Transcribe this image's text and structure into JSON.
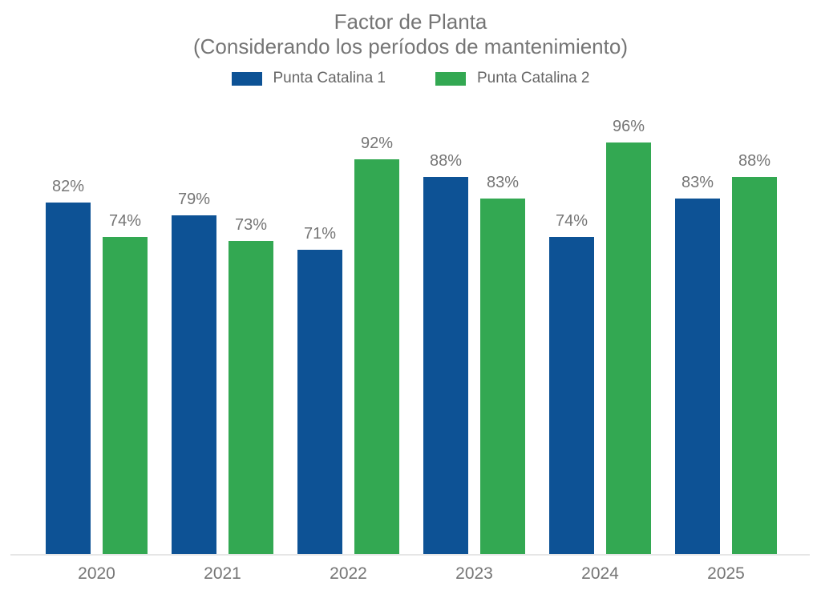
{
  "title": {
    "line1": "Factor de Planta",
    "line2": "(Considerando los períodos de mantenimiento)"
  },
  "colors": {
    "series1": "#0d5295",
    "series2": "#33a852",
    "axis_text": "#757575",
    "baseline": "#e6e6e6"
  },
  "chart_data": {
    "type": "bar",
    "title": "Factor de Planta",
    "subtitle": "(Considerando los períodos de mantenimiento)",
    "categories": [
      "2020",
      "2021",
      "2022",
      "2023",
      "2024",
      "2025"
    ],
    "series": [
      {
        "name": "Punta Catalina 1",
        "color": "#0d5295",
        "values": [
          82,
          79,
          71,
          88,
          74,
          83
        ]
      },
      {
        "name": "Punta Catalina 2",
        "color": "#33a852",
        "values": [
          74,
          73,
          92,
          83,
          96,
          88
        ]
      }
    ],
    "value_suffix": "%",
    "xlabel": "",
    "ylabel": "",
    "ylim": [
      0,
      100
    ],
    "grid": false,
    "data_labels": true,
    "legend_position": "top"
  }
}
